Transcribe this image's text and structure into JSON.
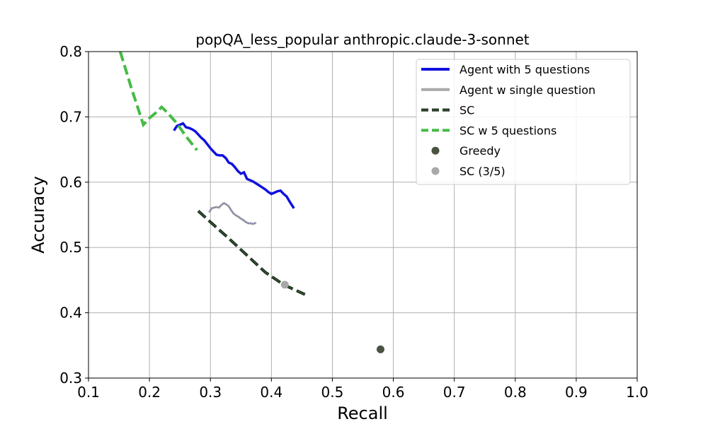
{
  "chart_data": {
    "type": "line",
    "title": "popQA_less_popular anthropic.claude-3-sonnet",
    "xlabel": "Recall",
    "ylabel": "Accuracy",
    "xlim": [
      0.1,
      1.0
    ],
    "ylim": [
      0.3,
      0.8
    ],
    "x_ticks": [
      0.1,
      0.2,
      0.3,
      0.4,
      0.5,
      0.6,
      0.7,
      0.8,
      0.9,
      1.0
    ],
    "y_ticks": [
      0.3,
      0.4,
      0.5,
      0.6,
      0.7,
      0.8
    ],
    "x_tick_labels": [
      "0.1",
      "0.2",
      "0.3",
      "0.4",
      "0.5",
      "0.6",
      "0.7",
      "0.8",
      "0.9",
      "1.0"
    ],
    "y_tick_labels": [
      "0.3",
      "0.4",
      "0.5",
      "0.6",
      "0.7",
      "0.8"
    ],
    "grid": true,
    "legend_position": "top-right",
    "series": [
      {
        "name": "Agent with 5 questions",
        "kind": "line",
        "style": "solid",
        "color": "#1010e0",
        "points": [
          [
            0.24,
            0.679
          ],
          [
            0.245,
            0.686
          ],
          [
            0.25,
            0.688
          ],
          [
            0.255,
            0.69
          ],
          [
            0.26,
            0.684
          ],
          [
            0.265,
            0.683
          ],
          [
            0.27,
            0.681
          ],
          [
            0.275,
            0.678
          ],
          [
            0.28,
            0.673
          ],
          [
            0.285,
            0.668
          ],
          [
            0.29,
            0.664
          ],
          [
            0.295,
            0.658
          ],
          [
            0.3,
            0.652
          ],
          [
            0.305,
            0.647
          ],
          [
            0.31,
            0.642
          ],
          [
            0.315,
            0.641
          ],
          [
            0.32,
            0.641
          ],
          [
            0.325,
            0.637
          ],
          [
            0.33,
            0.63
          ],
          [
            0.335,
            0.628
          ],
          [
            0.34,
            0.623
          ],
          [
            0.345,
            0.617
          ],
          [
            0.35,
            0.613
          ],
          [
            0.355,
            0.615
          ],
          [
            0.36,
            0.605
          ],
          [
            0.365,
            0.603
          ],
          [
            0.37,
            0.601
          ],
          [
            0.375,
            0.598
          ],
          [
            0.38,
            0.595
          ],
          [
            0.385,
            0.592
          ],
          [
            0.39,
            0.589
          ],
          [
            0.395,
            0.585
          ],
          [
            0.4,
            0.582
          ],
          [
            0.405,
            0.584
          ],
          [
            0.41,
            0.586
          ],
          [
            0.415,
            0.587
          ],
          [
            0.42,
            0.582
          ],
          [
            0.425,
            0.578
          ],
          [
            0.43,
            0.57
          ],
          [
            0.437,
            0.56
          ]
        ]
      },
      {
        "name": "Agent w single question",
        "kind": "line",
        "style": "solid-dotted",
        "color": "#a8a8a8",
        "points": [
          [
            0.298,
            0.554
          ],
          [
            0.302,
            0.56
          ],
          [
            0.306,
            0.561
          ],
          [
            0.31,
            0.562
          ],
          [
            0.314,
            0.561
          ],
          [
            0.318,
            0.565
          ],
          [
            0.322,
            0.568
          ],
          [
            0.326,
            0.566
          ],
          [
            0.33,
            0.563
          ],
          [
            0.334,
            0.557
          ],
          [
            0.338,
            0.552
          ],
          [
            0.342,
            0.549
          ],
          [
            0.346,
            0.547
          ],
          [
            0.35,
            0.544
          ],
          [
            0.354,
            0.542
          ],
          [
            0.358,
            0.539
          ],
          [
            0.362,
            0.537
          ],
          [
            0.366,
            0.537
          ],
          [
            0.37,
            0.536
          ],
          [
            0.375,
            0.538
          ]
        ]
      },
      {
        "name": "SC",
        "kind": "line",
        "style": "dashed",
        "color": "#2e5a2e",
        "points": [
          [
            0.28,
            0.556
          ],
          [
            0.3,
            0.539
          ],
          [
            0.33,
            0.514
          ],
          [
            0.36,
            0.488
          ],
          [
            0.39,
            0.462
          ],
          [
            0.42,
            0.443
          ],
          [
            0.455,
            0.428
          ]
        ]
      },
      {
        "name": "SC w 5 questions",
        "kind": "line",
        "style": "dashed",
        "color": "#44bb44",
        "points": [
          [
            0.152,
            0.8
          ],
          [
            0.17,
            0.745
          ],
          [
            0.19,
            0.688
          ],
          [
            0.2,
            0.698
          ],
          [
            0.21,
            0.706
          ],
          [
            0.22,
            0.715
          ],
          [
            0.23,
            0.706
          ],
          [
            0.245,
            0.69
          ],
          [
            0.26,
            0.67
          ],
          [
            0.278,
            0.649
          ]
        ]
      },
      {
        "name": "Greedy",
        "kind": "scatter",
        "color": "#4a5240",
        "points": [
          [
            0.579,
            0.344
          ]
        ]
      },
      {
        "name": "SC (3/5)",
        "kind": "scatter",
        "color": "#a8a8a8",
        "points": [
          [
            0.422,
            0.443
          ]
        ]
      }
    ]
  }
}
